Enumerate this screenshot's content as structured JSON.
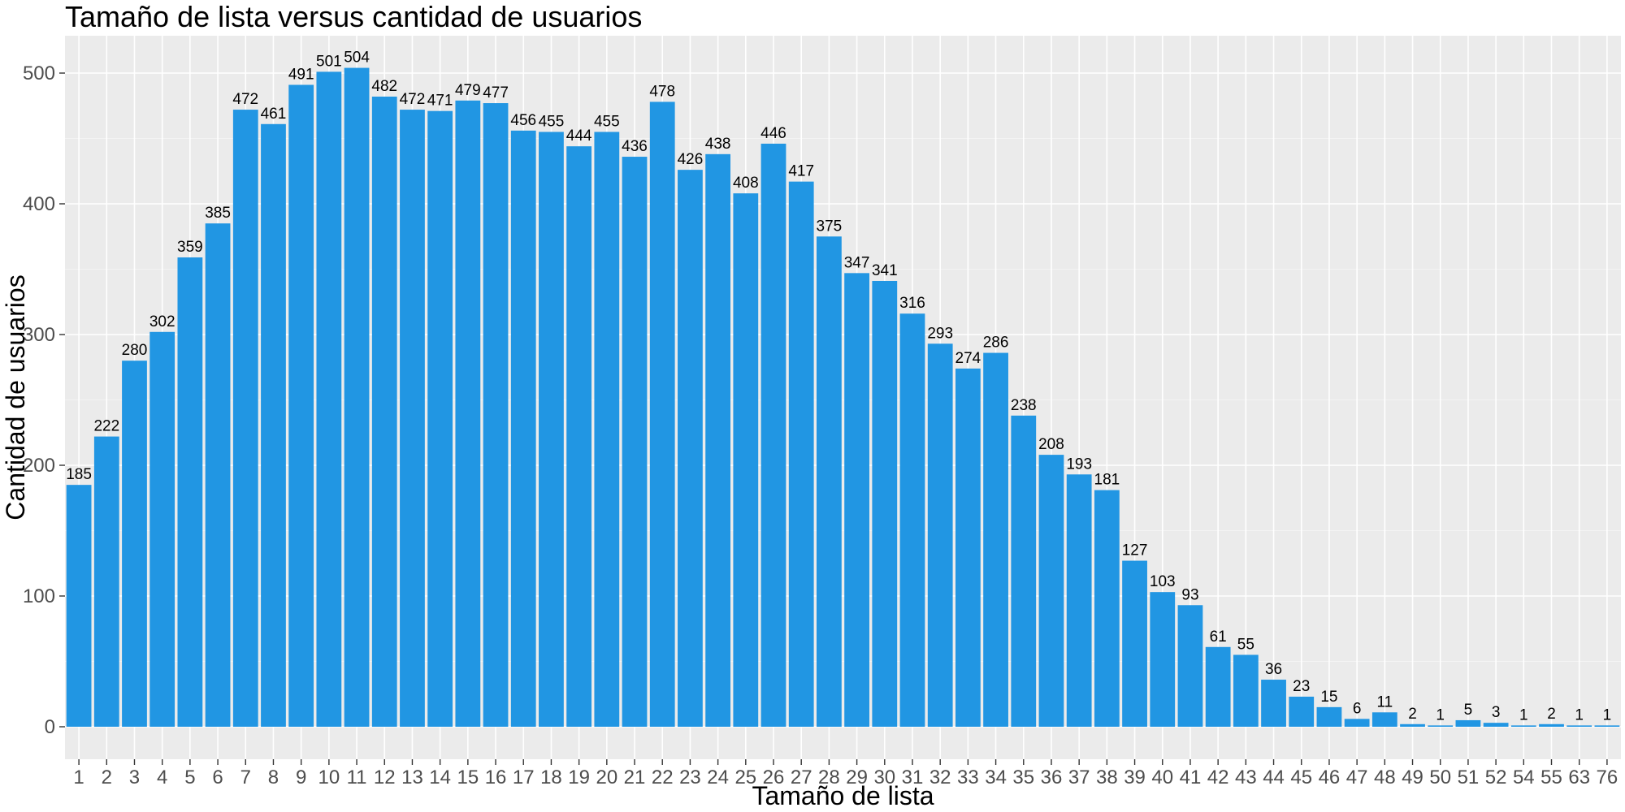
{
  "chart_data": {
    "type": "bar",
    "title": "Tamaño de lista versus cantidad de usuarios",
    "xlabel": "Tamaño de lista",
    "ylabel": "Cantidad de usuarios",
    "ylim": [
      0,
      525
    ],
    "yticks": [
      0,
      100,
      200,
      300,
      400,
      500
    ],
    "grid": true,
    "colors": {
      "bar": "#2196e3",
      "panel": "#ebebeb",
      "grid": "#ffffff"
    },
    "categories": [
      "1",
      "2",
      "3",
      "4",
      "5",
      "6",
      "7",
      "8",
      "9",
      "10",
      "11",
      "12",
      "13",
      "14",
      "15",
      "16",
      "17",
      "18",
      "19",
      "20",
      "21",
      "22",
      "23",
      "24",
      "25",
      "26",
      "27",
      "28",
      "29",
      "30",
      "31",
      "32",
      "33",
      "34",
      "35",
      "36",
      "37",
      "38",
      "39",
      "40",
      "41",
      "42",
      "43",
      "44",
      "45",
      "46",
      "47",
      "48",
      "49",
      "50",
      "51",
      "52",
      "54",
      "55",
      "63",
      "76"
    ],
    "values": [
      185,
      222,
      280,
      302,
      359,
      385,
      472,
      461,
      491,
      501,
      504,
      482,
      472,
      471,
      479,
      477,
      456,
      455,
      444,
      455,
      436,
      478,
      426,
      438,
      408,
      446,
      417,
      375,
      347,
      341,
      316,
      293,
      274,
      286,
      238,
      208,
      193,
      181,
      127,
      103,
      93,
      61,
      55,
      36,
      23,
      15,
      6,
      11,
      2,
      1,
      5,
      3,
      1,
      2,
      1,
      1
    ]
  }
}
